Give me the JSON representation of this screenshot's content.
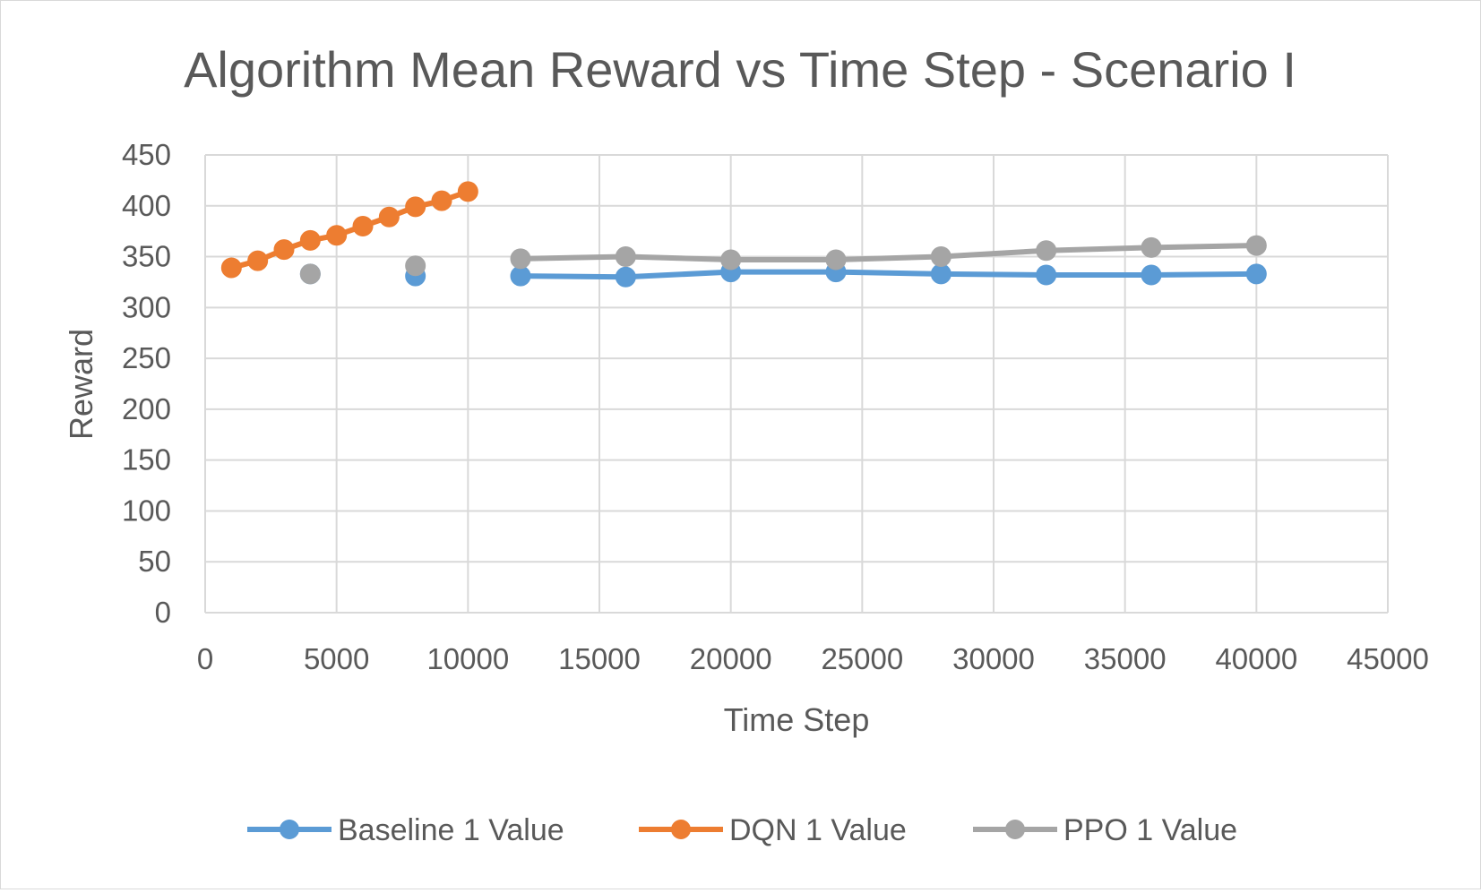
{
  "chart_data": {
    "type": "line",
    "title": "Algorithm Mean Reward vs Time Step - Scenario I",
    "xlabel": "Time Step",
    "ylabel": "Reward",
    "xlim": [
      0,
      45000
    ],
    "ylim": [
      0,
      450
    ],
    "x_ticks": [
      0,
      5000,
      10000,
      15000,
      20000,
      25000,
      30000,
      35000,
      40000,
      45000
    ],
    "y_ticks": [
      0,
      50,
      100,
      150,
      200,
      250,
      300,
      350,
      400,
      450
    ],
    "x_tick_labels": [
      "0",
      "5000",
      "10000",
      "15000",
      "20000",
      "25000",
      "30000",
      "35000",
      "40000",
      "45000"
    ],
    "y_tick_labels": [
      "0",
      "50",
      "100",
      "150",
      "200",
      "250",
      "300",
      "350",
      "400",
      "450"
    ],
    "grid": true,
    "legend_position": "bottom",
    "series": [
      {
        "name": "Baseline 1 Value",
        "color": "#5b9bd5",
        "segments": [
          [
            [
              4000,
              333
            ]
          ],
          [
            [
              8000,
              331
            ]
          ],
          [
            [
              12000,
              331
            ],
            [
              16000,
              330
            ],
            [
              20000,
              335
            ],
            [
              24000,
              335
            ],
            [
              28000,
              333
            ],
            [
              32000,
              332
            ],
            [
              36000,
              332
            ],
            [
              40000,
              333
            ]
          ]
        ]
      },
      {
        "name": "DQN 1 Value",
        "color": "#ed7d31",
        "segments": [
          [
            [
              1000,
              339
            ],
            [
              2000,
              346
            ],
            [
              3000,
              357
            ],
            [
              4000,
              366
            ],
            [
              5000,
              371
            ],
            [
              6000,
              380
            ],
            [
              7000,
              389
            ],
            [
              8000,
              399
            ],
            [
              9000,
              405
            ],
            [
              10000,
              414
            ]
          ]
        ]
      },
      {
        "name": "PPO 1 Value",
        "color": "#a5a5a5",
        "segments": [
          [
            [
              4000,
              333
            ]
          ],
          [
            [
              8000,
              341
            ]
          ],
          [
            [
              12000,
              348
            ],
            [
              16000,
              350
            ],
            [
              20000,
              347
            ],
            [
              24000,
              347
            ],
            [
              28000,
              350
            ],
            [
              32000,
              356
            ],
            [
              36000,
              359
            ],
            [
              40000,
              361
            ]
          ]
        ]
      }
    ]
  }
}
